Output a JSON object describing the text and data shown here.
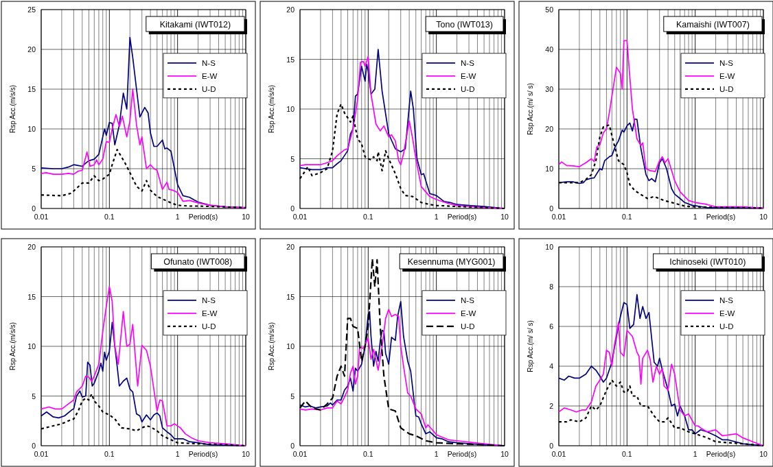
{
  "chart_data": [
    {
      "type": "line",
      "title": "Kitakami (IWT012)",
      "xlabel": "Period(s)",
      "ylabel": "Rsp Acc.(m/s/s)",
      "log": "x",
      "grid": true,
      "legend": "top right",
      "marker": "none",
      "xlim": [
        0.01,
        10
      ],
      "ylim": [
        0,
        25
      ],
      "yticks": [
        0,
        5,
        10,
        15,
        20,
        25
      ],
      "xticks": [
        0.01,
        {
          "value": 0.02,
          "label": null
        },
        {
          "value": 0.03,
          "label": null
        },
        {
          "value": 0.04,
          "label": null
        },
        {
          "value": 0.05,
          "label": null
        },
        {
          "value": 0.06,
          "label": null
        },
        {
          "value": 0.07,
          "label": null
        },
        {
          "value": 0.08,
          "label": null
        },
        {
          "value": 0.09,
          "label": null
        },
        0.1,
        {
          "value": 0.2,
          "label": null
        },
        {
          "value": 0.3,
          "label": null
        },
        {
          "value": 0.4,
          "label": null
        },
        {
          "value": 0.5,
          "label": null
        },
        {
          "value": 0.6,
          "label": null
        },
        {
          "value": 0.7,
          "label": null
        },
        {
          "value": 0.8,
          "label": null
        },
        {
          "value": 0.9,
          "label": null
        },
        1,
        {
          "value": 2,
          "label": null
        },
        {
          "value": 3,
          "label": null
        },
        {
          "value": 4,
          "label": null
        },
        {
          "value": 5,
          "label": null
        },
        {
          "value": 6,
          "label": null
        },
        {
          "value": 7,
          "label": null
        },
        {
          "value": 8,
          "label": null
        },
        {
          "value": 9,
          "label": null
        },
        10
      ],
      "series": [
        {
          "name": "N-S",
          "color": "#000080",
          "line_style": "solid",
          "x": [
            0.01,
            0.015,
            0.02,
            0.025,
            0.03,
            0.035,
            0.04,
            0.045,
            0.05,
            0.06,
            0.07,
            0.08,
            0.085,
            0.09,
            0.1,
            0.11,
            0.12,
            0.14,
            0.16,
            0.18,
            0.2,
            0.22,
            0.25,
            0.28,
            0.33,
            0.37,
            0.4,
            0.45,
            0.5,
            0.6,
            0.65,
            0.7,
            0.8,
            1,
            1.2,
            1.5,
            2,
            3,
            5,
            10
          ],
          "values": [
            5.1,
            5.0,
            5.0,
            5.2,
            5.5,
            5.4,
            5.3,
            5.7,
            6.0,
            6.2,
            6.8,
            9.0,
            10,
            9.2,
            10.8,
            10.7,
            8.0,
            10.5,
            14.5,
            12.5,
            21.5,
            19,
            15,
            11.5,
            12.7,
            12.0,
            9.5,
            7.8,
            7.8,
            8.6,
            7.5,
            7.6,
            7.2,
            3.0,
            1.6,
            1.4,
            0.8,
            0.4,
            0.2,
            0.1
          ]
        },
        {
          "name": "E-W",
          "color": "#ff00ff",
          "line_style": "solid",
          "x": [
            0.01,
            0.012,
            0.015,
            0.02,
            0.025,
            0.03,
            0.035,
            0.04,
            0.047,
            0.052,
            0.06,
            0.065,
            0.07,
            0.08,
            0.09,
            0.1,
            0.11,
            0.125,
            0.14,
            0.155,
            0.18,
            0.2,
            0.22,
            0.25,
            0.28,
            0.3,
            0.35,
            0.4,
            0.45,
            0.5,
            0.6,
            0.7,
            0.75,
            0.85,
            1,
            1.2,
            1.5,
            2,
            3,
            5,
            10
          ],
          "values": [
            4.4,
            4.5,
            4.3,
            4.3,
            4.4,
            4.3,
            4.7,
            4.8,
            7.1,
            5.3,
            5.5,
            6.1,
            5.5,
            6.2,
            8.4,
            8.3,
            10,
            11.8,
            10.3,
            11.6,
            9.0,
            11,
            15,
            10.5,
            8.0,
            9.0,
            5.0,
            5.5,
            5.0,
            4.8,
            2.4,
            3.3,
            2.4,
            2.3,
            2.0,
            0.9,
            1.0,
            0.7,
            0.4,
            0.2,
            0.1
          ]
        },
        {
          "name": "U-D",
          "color": "#000000",
          "line_style": "dotted",
          "x": [
            0.01,
            0.02,
            0.027,
            0.03,
            0.04,
            0.05,
            0.06,
            0.07,
            0.08,
            0.1,
            0.11,
            0.13,
            0.15,
            0.17,
            0.2,
            0.25,
            0.3,
            0.35,
            0.4,
            0.5,
            0.6,
            0.8,
            1,
            1.5,
            2,
            5,
            10
          ],
          "values": [
            1.7,
            1.6,
            1.9,
            2.2,
            3.2,
            3.2,
            4.1,
            3.5,
            3.7,
            4.3,
            5.5,
            7.4,
            6.5,
            5.7,
            4.5,
            2.8,
            2.2,
            3.5,
            2.3,
            1.5,
            1.2,
            0.7,
            0.4,
            0.3,
            0.3,
            0.2,
            0.1
          ]
        }
      ]
    },
    {
      "type": "line",
      "title": "Tono (IWT013)",
      "xlabel": "Period(s)",
      "ylabel": "Rsp Acc.(m/s/s)",
      "log": "x",
      "grid": true,
      "legend": "top right",
      "marker": "none",
      "xlim": [
        0.01,
        10
      ],
      "ylim": [
        0,
        20
      ],
      "yticks": [
        0,
        5,
        10,
        15,
        20
      ],
      "xticks": [
        0.01,
        {
          "value": 0.02,
          "label": null
        },
        {
          "value": 0.03,
          "label": null
        },
        {
          "value": 0.04,
          "label": null
        },
        {
          "value": 0.05,
          "label": null
        },
        {
          "value": 0.06,
          "label": null
        },
        {
          "value": 0.07,
          "label": null
        },
        {
          "value": 0.08,
          "label": null
        },
        {
          "value": 0.09,
          "label": null
        },
        0.1,
        {
          "value": 0.2,
          "label": null
        },
        {
          "value": 0.3,
          "label": null
        },
        {
          "value": 0.4,
          "label": null
        },
        {
          "value": 0.5,
          "label": null
        },
        {
          "value": 0.6,
          "label": null
        },
        {
          "value": 0.7,
          "label": null
        },
        {
          "value": 0.8,
          "label": null
        },
        {
          "value": 0.9,
          "label": null
        },
        1,
        {
          "value": 2,
          "label": null
        },
        {
          "value": 3,
          "label": null
        },
        {
          "value": 4,
          "label": null
        },
        {
          "value": 5,
          "label": null
        },
        {
          "value": 6,
          "label": null
        },
        {
          "value": 7,
          "label": null
        },
        {
          "value": 8,
          "label": null
        },
        {
          "value": 9,
          "label": null
        },
        10
      ],
      "series": [
        {
          "name": "N-S",
          "color": "#000080",
          "line_style": "solid",
          "x": [
            0.01,
            0.015,
            0.02,
            0.025,
            0.03,
            0.035,
            0.04,
            0.05,
            0.055,
            0.06,
            0.065,
            0.07,
            0.08,
            0.09,
            0.095,
            0.1,
            0.11,
            0.125,
            0.14,
            0.16,
            0.2,
            0.25,
            0.3,
            0.35,
            0.42,
            0.46,
            0.52,
            0.6,
            0.65,
            0.8,
            1,
            1.3,
            1.6,
            2,
            3,
            5,
            10
          ],
          "values": [
            4.1,
            3.9,
            3.9,
            4.1,
            4.1,
            4.5,
            4.8,
            5.8,
            7.5,
            8,
            11.3,
            11.5,
            14.3,
            12.8,
            14.5,
            13.8,
            11.5,
            12,
            16,
            11.8,
            7.5,
            6.0,
            5.7,
            6.0,
            11.8,
            10,
            5,
            3.4,
            3.5,
            1.5,
            1.3,
            0.7,
            0.6,
            0.4,
            0.3,
            0.2,
            0
          ]
        },
        {
          "name": "E-W",
          "color": "#ff00ff",
          "line_style": "solid",
          "x": [
            0.01,
            0.012,
            0.015,
            0.02,
            0.025,
            0.03,
            0.035,
            0.045,
            0.05,
            0.06,
            0.07,
            0.077,
            0.085,
            0.09,
            0.1,
            0.11,
            0.13,
            0.15,
            0.17,
            0.2,
            0.22,
            0.25,
            0.28,
            0.3,
            0.33,
            0.4,
            0.45,
            0.5,
            0.6,
            0.8,
            1,
            1.5,
            2,
            5,
            10
          ],
          "values": [
            4.3,
            4.4,
            4.4,
            4.4,
            4.6,
            4.8,
            5.3,
            5.9,
            6.0,
            8,
            11,
            14.7,
            14.8,
            14.3,
            15.3,
            11.5,
            8.5,
            7.8,
            8.3,
            7.2,
            7.4,
            6.8,
            4.8,
            4.4,
            5.5,
            8.8,
            7,
            5,
            2.2,
            1.2,
            0.9,
            0.5,
            0.3,
            0.1,
            0
          ]
        },
        {
          "name": "U-D",
          "color": "#000000",
          "line_style": "dotted",
          "x": [
            0.01,
            0.012,
            0.013,
            0.015,
            0.02,
            0.025,
            0.03,
            0.035,
            0.04,
            0.045,
            0.055,
            0.06,
            0.07,
            0.08,
            0.09,
            0.1,
            0.11,
            0.12,
            0.135,
            0.14,
            0.16,
            0.18,
            0.2,
            0.25,
            0.3,
            0.35,
            0.45,
            0.6,
            0.8,
            1,
            2,
            5,
            10
          ],
          "values": [
            3.0,
            3.8,
            4.2,
            3.3,
            3.6,
            4.0,
            5.8,
            9.5,
            10.5,
            9.6,
            8.7,
            9.3,
            7.0,
            6.5,
            5.2,
            5.0,
            4.9,
            5.2,
            4.8,
            5.7,
            3.8,
            5.8,
            5.0,
            3.5,
            2.0,
            1.3,
            1.2,
            0.6,
            0.4,
            0.3,
            0.2,
            0.1,
            0
          ]
        }
      ]
    },
    {
      "type": "line",
      "title": "Kamaishi (IWT007)",
      "xlabel": "Period(s)",
      "ylabel": "Rsp Acc.(m/ s/ s)",
      "log": "x",
      "grid": true,
      "legend": "top right",
      "marker": "none",
      "xlim": [
        0.01,
        10
      ],
      "ylim": [
        0,
        50
      ],
      "yticks": [
        0,
        10,
        20,
        30,
        40,
        50
      ],
      "xticks": [
        0.01,
        {
          "value": 0.02,
          "label": null
        },
        {
          "value": 0.03,
          "label": null
        },
        {
          "value": 0.04,
          "label": null
        },
        {
          "value": 0.05,
          "label": null
        },
        {
          "value": 0.06,
          "label": null
        },
        {
          "value": 0.07,
          "label": null
        },
        {
          "value": 0.08,
          "label": null
        },
        {
          "value": 0.09,
          "label": null
        },
        0.1,
        {
          "value": 0.2,
          "label": null
        },
        {
          "value": 0.3,
          "label": null
        },
        {
          "value": 0.4,
          "label": null
        },
        {
          "value": 0.5,
          "label": null
        },
        {
          "value": 0.6,
          "label": null
        },
        {
          "value": 0.7,
          "label": null
        },
        {
          "value": 0.8,
          "label": null
        },
        {
          "value": 0.9,
          "label": null
        },
        1,
        {
          "value": 2,
          "label": null
        },
        {
          "value": 3,
          "label": null
        },
        {
          "value": 4,
          "label": null
        },
        {
          "value": 5,
          "label": null
        },
        {
          "value": 6,
          "label": null
        },
        {
          "value": 7,
          "label": null
        },
        {
          "value": 8,
          "label": null
        },
        {
          "value": 9,
          "label": null
        },
        10
      ],
      "series": [
        {
          "name": "N-S",
          "color": "#000080",
          "line_style": "solid",
          "x": [
            0.01,
            0.013,
            0.016,
            0.02,
            0.023,
            0.025,
            0.03,
            0.033,
            0.04,
            0.043,
            0.047,
            0.055,
            0.06,
            0.067,
            0.075,
            0.085,
            0.09,
            0.1,
            0.11,
            0.12,
            0.13,
            0.14,
            0.16,
            0.19,
            0.21,
            0.23,
            0.26,
            0.3,
            0.33,
            0.38,
            0.45,
            0.5,
            0.6,
            0.7,
            0.9,
            1,
            1.5,
            3,
            10
          ],
          "values": [
            6.5,
            6.7,
            6.7,
            6.3,
            6.5,
            7.2,
            7.6,
            7.7,
            10,
            9.7,
            12,
            13,
            13.3,
            15.5,
            17,
            19.7,
            19.2,
            20.8,
            21.5,
            19.5,
            22.5,
            22.4,
            15,
            8.5,
            7,
            7.5,
            6.7,
            11.5,
            12.5,
            10,
            5,
            3.6,
            2.5,
            1.5,
            0.8,
            0.7,
            0.2,
            0.2,
            0.1
          ]
        },
        {
          "name": "E-W",
          "color": "#ff00ff",
          "line_style": "solid",
          "x": [
            0.01,
            0.011,
            0.013,
            0.016,
            0.02,
            0.025,
            0.03,
            0.033,
            0.036,
            0.04,
            0.045,
            0.05,
            0.055,
            0.065,
            0.07,
            0.08,
            0.085,
            0.09,
            0.1,
            0.11,
            0.12,
            0.14,
            0.16,
            0.17,
            0.19,
            0.22,
            0.26,
            0.3,
            0.33,
            0.36,
            0.4,
            0.5,
            0.6,
            0.8,
            1,
            1.5,
            2,
            5,
            10
          ],
          "values": [
            11,
            11.7,
            10.8,
            10.7,
            10.5,
            11.5,
            12.5,
            11.8,
            15.5,
            16,
            19,
            20,
            24,
            32,
            35.5,
            34,
            30,
            42.2,
            42.2,
            33,
            25,
            17.5,
            15.8,
            16.5,
            10,
            9.5,
            9.3,
            12,
            13,
            11.5,
            12.5,
            7,
            4.2,
            2,
            1.5,
            1,
            0.4,
            0.4,
            0.1
          ]
        },
        {
          "name": "U-D",
          "color": "#000000",
          "line_style": "dotted",
          "x": [
            0.01,
            0.015,
            0.02,
            0.025,
            0.03,
            0.035,
            0.04,
            0.045,
            0.055,
            0.065,
            0.075,
            0.09,
            0.1,
            0.11,
            0.13,
            0.16,
            0.2,
            0.25,
            0.35,
            0.5,
            0.7,
            1,
            2,
            5,
            10
          ],
          "values": [
            6.5,
            6.5,
            6.5,
            7.3,
            8.5,
            12,
            18,
            20.5,
            21,
            16,
            12,
            11,
            9,
            6,
            4.5,
            3.5,
            2.5,
            3,
            2,
            1.3,
            0.6,
            0.4,
            0.3,
            0.2,
            0.1
          ]
        }
      ]
    },
    {
      "type": "line",
      "title": "Ofunato (IWT008)",
      "xlabel": "Period(s)",
      "ylabel": "Rsp Acc.(m/s/s)",
      "log": "x",
      "grid": true,
      "legend": "top right",
      "marker": "none",
      "xlim": [
        0.01,
        10
      ],
      "ylim": [
        0,
        20
      ],
      "yticks": [
        0,
        5,
        10,
        15,
        20
      ],
      "xticks": [
        0.01,
        {
          "value": 0.02,
          "label": null
        },
        {
          "value": 0.03,
          "label": null
        },
        {
          "value": 0.04,
          "label": null
        },
        {
          "value": 0.05,
          "label": null
        },
        {
          "value": 0.06,
          "label": null
        },
        {
          "value": 0.07,
          "label": null
        },
        {
          "value": 0.08,
          "label": null
        },
        {
          "value": 0.09,
          "label": null
        },
        0.1,
        {
          "value": 0.2,
          "label": null
        },
        {
          "value": 0.3,
          "label": null
        },
        {
          "value": 0.4,
          "label": null
        },
        {
          "value": 0.5,
          "label": null
        },
        {
          "value": 0.6,
          "label": null
        },
        {
          "value": 0.7,
          "label": null
        },
        {
          "value": 0.8,
          "label": null
        },
        {
          "value": 0.9,
          "label": null
        },
        1,
        {
          "value": 2,
          "label": null
        },
        {
          "value": 3,
          "label": null
        },
        {
          "value": 4,
          "label": null
        },
        {
          "value": 5,
          "label": null
        },
        {
          "value": 6,
          "label": null
        },
        {
          "value": 7,
          "label": null
        },
        {
          "value": 8,
          "label": null
        },
        {
          "value": 9,
          "label": null
        },
        10
      ],
      "series": [
        {
          "name": "N-S",
          "color": "#000080",
          "line_style": "solid",
          "x": [
            0.01,
            0.012,
            0.015,
            0.018,
            0.022,
            0.028,
            0.03,
            0.033,
            0.037,
            0.04,
            0.045,
            0.048,
            0.052,
            0.056,
            0.06,
            0.07,
            0.075,
            0.08,
            0.085,
            0.09,
            0.1,
            0.11,
            0.12,
            0.13,
            0.14,
            0.16,
            0.18,
            0.2,
            0.22,
            0.25,
            0.28,
            0.3,
            0.35,
            0.4,
            0.45,
            0.5,
            0.55,
            0.6,
            0.7,
            0.8,
            0.9,
            1.2,
            1.5,
            2,
            3,
            10
          ],
          "values": [
            3.0,
            3.4,
            2.9,
            2.8,
            3.0,
            3.6,
            3.7,
            5.0,
            5.5,
            4.9,
            5.0,
            8.4,
            8.1,
            6.0,
            6.3,
            7.5,
            8.3,
            7.5,
            9.4,
            8.6,
            9.5,
            12.4,
            10.0,
            8.0,
            6.0,
            6.5,
            6.8,
            5.7,
            5.4,
            3.2,
            3.0,
            2.4,
            3.1,
            2.6,
            3.1,
            3.3,
            3.0,
            1.8,
            1.4,
            1.1,
            0.7,
            0.7,
            0.4,
            0.3,
            0.1,
            0
          ]
        },
        {
          "name": "E-W",
          "color": "#ff00ff",
          "line_style": "solid",
          "x": [
            0.01,
            0.013,
            0.016,
            0.02,
            0.025,
            0.03,
            0.033,
            0.04,
            0.045,
            0.05,
            0.055,
            0.06,
            0.07,
            0.08,
            0.09,
            0.1,
            0.11,
            0.12,
            0.135,
            0.16,
            0.18,
            0.2,
            0.22,
            0.26,
            0.3,
            0.35,
            0.4,
            0.5,
            0.55,
            0.6,
            0.7,
            0.8,
            0.9,
            1.1,
            1.3,
            1.6,
            2,
            3,
            5,
            10
          ],
          "values": [
            3.7,
            3.9,
            3.7,
            3.7,
            4.2,
            4.6,
            5.4,
            6.0,
            7.0,
            6.9,
            6.5,
            7,
            8.2,
            11.5,
            14,
            16,
            14.5,
            10,
            8.2,
            13.5,
            10,
            10.2,
            12.2,
            6.0,
            10.1,
            9.6,
            8.0,
            3.5,
            4.6,
            4.5,
            2,
            2,
            2.2,
            1.8,
            1.2,
            0.8,
            0.5,
            0.3,
            0.2,
            0
          ]
        },
        {
          "name": "U-D",
          "color": "#000000",
          "line_style": "dotted",
          "x": [
            0.01,
            0.015,
            0.02,
            0.025,
            0.03,
            0.035,
            0.04,
            0.045,
            0.05,
            0.055,
            0.06,
            0.07,
            0.08,
            0.1,
            0.12,
            0.15,
            0.2,
            0.25,
            0.3,
            0.35,
            0.4,
            0.5,
            0.6,
            0.8,
            1,
            2,
            5,
            10
          ],
          "values": [
            1.7,
            2.0,
            2.2,
            2.5,
            2.7,
            3.5,
            4.5,
            4.8,
            4.6,
            5.2,
            4.5,
            4.0,
            3.4,
            3.1,
            2.7,
            1.8,
            1.7,
            1.5,
            1.8,
            2.0,
            1.9,
            1.5,
            1.0,
            0.6,
            0.3,
            0.2,
            0.1,
            0
          ]
        }
      ]
    },
    {
      "type": "line",
      "title": "Kesennuma (MYG001)",
      "xlabel": "Period(s)",
      "ylabel": "Rsp Acc.(m/s/s)",
      "log": "x",
      "grid": true,
      "legend": "top right",
      "marker": "none",
      "xlim": [
        0.01,
        10
      ],
      "ylim": [
        0,
        20
      ],
      "yticks": [
        0,
        5,
        10,
        15,
        20
      ],
      "xticks": [
        0.01,
        {
          "value": 0.02,
          "label": null
        },
        {
          "value": 0.03,
          "label": null
        },
        {
          "value": 0.04,
          "label": null
        },
        {
          "value": 0.05,
          "label": null
        },
        {
          "value": 0.06,
          "label": null
        },
        {
          "value": 0.07,
          "label": null
        },
        {
          "value": 0.08,
          "label": null
        },
        {
          "value": 0.09,
          "label": null
        },
        0.1,
        {
          "value": 0.2,
          "label": null
        },
        {
          "value": 0.3,
          "label": null
        },
        {
          "value": 0.4,
          "label": null
        },
        {
          "value": 0.5,
          "label": null
        },
        {
          "value": 0.6,
          "label": null
        },
        {
          "value": 0.7,
          "label": null
        },
        {
          "value": 0.8,
          "label": null
        },
        {
          "value": 0.9,
          "label": null
        },
        1,
        {
          "value": 2,
          "label": null
        },
        {
          "value": 3,
          "label": null
        },
        {
          "value": 4,
          "label": null
        },
        {
          "value": 5,
          "label": null
        },
        {
          "value": 6,
          "label": null
        },
        {
          "value": 7,
          "label": null
        },
        {
          "value": 8,
          "label": null
        },
        {
          "value": 9,
          "label": null
        },
        10
      ],
      "series": [
        {
          "name": "N-S",
          "color": "#000080",
          "line_style": "solid",
          "x": [
            0.01,
            0.012,
            0.014,
            0.017,
            0.02,
            0.025,
            0.028,
            0.03,
            0.035,
            0.04,
            0.045,
            0.05,
            0.055,
            0.06,
            0.065,
            0.07,
            0.08,
            0.09,
            0.1,
            0.105,
            0.11,
            0.12,
            0.13,
            0.14,
            0.15,
            0.16,
            0.17,
            0.18,
            0.2,
            0.22,
            0.25,
            0.27,
            0.3,
            0.33,
            0.38,
            0.42,
            0.5,
            0.55,
            0.6,
            0.7,
            0.8,
            1,
            1.2,
            1.5,
            2,
            5,
            10
          ],
          "values": [
            4.1,
            3.9,
            4.0,
            3.8,
            3.9,
            4.0,
            4.3,
            4.1,
            4.6,
            4.6,
            5.6,
            6,
            6.8,
            5.5,
            7.8,
            7.5,
            8.2,
            10,
            13.2,
            13.5,
            11,
            8.0,
            9.5,
            8.5,
            10.5,
            11.6,
            11.5,
            9.3,
            8.2,
            10.9,
            10.6,
            13,
            14.5,
            11,
            8.5,
            7.5,
            3,
            2.9,
            2.2,
            1.2,
            1.4,
            0.8,
            0.7,
            0.4,
            0.3,
            0.1,
            0
          ]
        },
        {
          "name": "E-W",
          "color": "#ff00ff",
          "line_style": "solid",
          "x": [
            0.01,
            0.012,
            0.015,
            0.02,
            0.025,
            0.03,
            0.035,
            0.04,
            0.045,
            0.05,
            0.055,
            0.06,
            0.065,
            0.07,
            0.075,
            0.085,
            0.1,
            0.11,
            0.12,
            0.14,
            0.16,
            0.18,
            0.2,
            0.22,
            0.25,
            0.28,
            0.3,
            0.33,
            0.38,
            0.42,
            0.5,
            0.6,
            0.7,
            0.75,
            0.9,
            1,
            1.5,
            2,
            5,
            10
          ],
          "values": [
            3.7,
            3.6,
            3.7,
            3.6,
            3.8,
            3.8,
            4.5,
            4.2,
            4.9,
            5.6,
            7.3,
            8,
            6.2,
            7,
            9.9,
            9.8,
            10.8,
            8.7,
            9.7,
            7.6,
            10,
            12.8,
            13.7,
            13,
            13.2,
            13,
            10,
            8,
            5.3,
            5,
            3.7,
            3.2,
            1.8,
            2.1,
            1.5,
            1.1,
            0.6,
            0.5,
            0.2,
            0
          ]
        },
        {
          "name": "U-D",
          "color": "#000000",
          "line_style": "dashed",
          "x": [
            0.01,
            0.012,
            0.015,
            0.02,
            0.025,
            0.03,
            0.035,
            0.04,
            0.045,
            0.05,
            0.055,
            0.06,
            0.07,
            0.08,
            0.09,
            0.1,
            0.115,
            0.125,
            0.135,
            0.15,
            0.17,
            0.2,
            0.25,
            0.3,
            0.4,
            0.5,
            0.7,
            1,
            2,
            5,
            10
          ],
          "values": [
            3.8,
            4.5,
            3.8,
            3.6,
            4.2,
            4.8,
            7.0,
            8.0,
            7.0,
            12.8,
            12.8,
            12,
            11.8,
            8.5,
            10,
            12,
            18.8,
            16,
            18.7,
            12,
            7,
            3.7,
            3.5,
            1.8,
            1.2,
            1.0,
            0.5,
            0.3,
            0.2,
            0.1,
            0
          ]
        }
      ]
    },
    {
      "type": "line",
      "title": "Ichinoseki (IWT010)",
      "xlabel": "Period(s)",
      "ylabel": "Rsp Acc.(m/ s/ s)",
      "log": "x",
      "grid": true,
      "legend": "top right",
      "marker": "none",
      "xlim": [
        0.01,
        10
      ],
      "ylim": [
        0,
        10
      ],
      "yticks": [
        0,
        2,
        4,
        6,
        8,
        10
      ],
      "xticks": [
        0.01,
        {
          "value": 0.02,
          "label": null
        },
        {
          "value": 0.03,
          "label": null
        },
        {
          "value": 0.04,
          "label": null
        },
        {
          "value": 0.05,
          "label": null
        },
        {
          "value": 0.06,
          "label": null
        },
        {
          "value": 0.07,
          "label": null
        },
        {
          "value": 0.08,
          "label": null
        },
        {
          "value": 0.09,
          "label": null
        },
        0.1,
        {
          "value": 0.2,
          "label": null
        },
        {
          "value": 0.3,
          "label": null
        },
        {
          "value": 0.4,
          "label": null
        },
        {
          "value": 0.5,
          "label": null
        },
        {
          "value": 0.6,
          "label": null
        },
        {
          "value": 0.7,
          "label": null
        },
        {
          "value": 0.8,
          "label": null
        },
        {
          "value": 0.9,
          "label": null
        },
        1,
        {
          "value": 2,
          "label": null
        },
        {
          "value": 3,
          "label": null
        },
        {
          "value": 4,
          "label": null
        },
        {
          "value": 5,
          "label": null
        },
        {
          "value": 6,
          "label": null
        },
        {
          "value": 7,
          "label": null
        },
        {
          "value": 8,
          "label": null
        },
        {
          "value": 9,
          "label": null
        },
        10
      ],
      "series": [
        {
          "name": "N-S",
          "color": "#000080",
          "line_style": "solid",
          "x": [
            0.01,
            0.012,
            0.014,
            0.017,
            0.02,
            0.025,
            0.03,
            0.035,
            0.04,
            0.045,
            0.05,
            0.06,
            0.07,
            0.08,
            0.09,
            0.1,
            0.11,
            0.125,
            0.14,
            0.155,
            0.17,
            0.19,
            0.21,
            0.25,
            0.28,
            0.3,
            0.33,
            0.4,
            0.45,
            0.5,
            0.55,
            0.6,
            0.7,
            0.8,
            0.9,
            1,
            1.2,
            1.5,
            2,
            2.5,
            3,
            5,
            10
          ],
          "values": [
            3.4,
            3.3,
            3.5,
            3.4,
            3.4,
            3.6,
            4.0,
            3.8,
            3.5,
            3.2,
            3.4,
            4.2,
            5.5,
            6.5,
            7.2,
            7.1,
            5.9,
            6.1,
            7.6,
            6.4,
            7.0,
            6.4,
            6.7,
            4.2,
            4.0,
            4.4,
            3.8,
            2.8,
            2,
            2.1,
            1.5,
            2.0,
            1.5,
            0.8,
            0.8,
            0.6,
            0.8,
            0.7,
            0.5,
            0.3,
            0.3,
            0.1,
            0
          ]
        },
        {
          "name": "E-W",
          "color": "#ff00ff",
          "line_style": "solid",
          "x": [
            0.01,
            0.012,
            0.015,
            0.018,
            0.022,
            0.025,
            0.03,
            0.035,
            0.04,
            0.045,
            0.05,
            0.055,
            0.06,
            0.065,
            0.075,
            0.08,
            0.09,
            0.1,
            0.12,
            0.14,
            0.15,
            0.16,
            0.17,
            0.2,
            0.22,
            0.24,
            0.27,
            0.3,
            0.33,
            0.35,
            0.4,
            0.45,
            0.5,
            0.6,
            0.7,
            0.8,
            1,
            1.1,
            1.2,
            1.5,
            2,
            2.5,
            4,
            5,
            7,
            10
          ],
          "values": [
            1.7,
            1.9,
            1.8,
            1.7,
            1.8,
            1.8,
            2.2,
            3.0,
            3.3,
            3.6,
            4.8,
            4.7,
            4.0,
            5.0,
            6.2,
            4.7,
            4.5,
            5.8,
            5.5,
            4.7,
            4.5,
            3.1,
            4.4,
            4.8,
            4.3,
            3.2,
            4.0,
            3.6,
            3.9,
            3.0,
            2.8,
            4.1,
            3.6,
            1.8,
            1.5,
            1.6,
            1.0,
            1.0,
            0.9,
            0.7,
            0.8,
            0.5,
            0.6,
            0.4,
            0.2,
            0
          ]
        },
        {
          "name": "U-D",
          "color": "#000000",
          "line_style": "dotted",
          "x": [
            0.01,
            0.013,
            0.015,
            0.02,
            0.025,
            0.03,
            0.035,
            0.04,
            0.05,
            0.06,
            0.07,
            0.08,
            0.09,
            0.1,
            0.11,
            0.12,
            0.14,
            0.16,
            0.2,
            0.25,
            0.3,
            0.35,
            0.4,
            0.5,
            0.6,
            0.8,
            1,
            1.5,
            2,
            5,
            10
          ],
          "values": [
            1.2,
            1.2,
            1.3,
            1.2,
            1.4,
            2.0,
            1.8,
            2.0,
            2.8,
            3.3,
            3.0,
            3.2,
            2.7,
            2.7,
            3.0,
            2.5,
            2.5,
            2.0,
            2.0,
            1.5,
            1.2,
            1.2,
            1.4,
            0.9,
            0.9,
            0.7,
            0.6,
            0.4,
            0.2,
            0.1,
            0
          ]
        }
      ]
    }
  ]
}
